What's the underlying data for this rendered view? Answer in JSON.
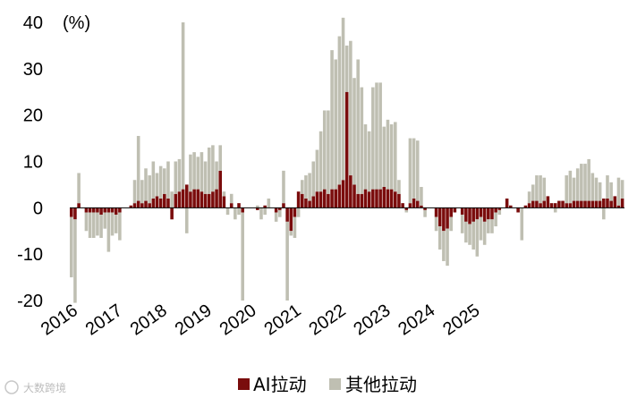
{
  "chart_data": {
    "type": "bar",
    "stacked": true,
    "unit_label": "(%)",
    "ylim": [
      -20,
      40
    ],
    "yticks": [
      -20,
      -10,
      0,
      10,
      20,
      30,
      40
    ],
    "x_tick_labels": [
      "2016",
      "2017",
      "2018",
      "2019",
      "2020",
      "2021",
      "2022",
      "2023",
      "2024",
      "2025"
    ],
    "x_start": "2016-01",
    "colors": {
      "AI拉动": "#7a0c0c",
      "其他拉动": "#bfbfb2"
    },
    "legend": {
      "position": "bottom-center",
      "entries": [
        "AI拉动",
        "其他拉动"
      ]
    },
    "series": [
      {
        "name": "AI拉动",
        "values": [
          -2,
          -2.5,
          1,
          0,
          -1,
          -1,
          -1,
          -1,
          -1.5,
          -1,
          -1,
          -1,
          -1.5,
          -1,
          0,
          0,
          0.5,
          1,
          1.5,
          1,
          1.5,
          1,
          2,
          2.5,
          2,
          3,
          2,
          -2.5,
          3,
          3.5,
          4,
          5,
          3.5,
          4,
          4,
          3.5,
          3,
          3,
          3.5,
          4,
          8,
          2.5,
          0,
          1,
          0,
          1,
          -1,
          0,
          0,
          0,
          -0.5,
          0,
          0.5,
          0,
          0,
          -1,
          -0.5,
          1,
          -3,
          -5,
          -2,
          3.5,
          3,
          2,
          1.5,
          2.5,
          3.5,
          3.5,
          4,
          3,
          4,
          4,
          5,
          6,
          25,
          7,
          5,
          3,
          3,
          4,
          3.5,
          4,
          4,
          4,
          4.5,
          4,
          4,
          3.5,
          3,
          1,
          -0.5,
          1,
          2,
          1.5,
          0.5,
          -0.5,
          0,
          0,
          -2,
          -4,
          -5,
          -4.5,
          -2,
          -1,
          0,
          -1.5,
          -3,
          -3.5,
          -3,
          -2.5,
          -2,
          -3,
          -2.5,
          -2.5,
          -1,
          -0.5,
          0,
          2,
          0.5,
          0,
          -1,
          0,
          0.5,
          1,
          1.5,
          1.5,
          1,
          1.5,
          2.5,
          1,
          1,
          1.5,
          1.5,
          1,
          1,
          1.5,
          1.5,
          1.5,
          1.5,
          1.5,
          1.5,
          1.5,
          1.5,
          2,
          2,
          1.5,
          2.5,
          0.5,
          2
        ]
      },
      {
        "name": "其他拉动",
        "values": [
          -13,
          -18,
          6.5,
          0,
          -4,
          -5.5,
          -5.5,
          -5,
          -5,
          -3.5,
          -8.5,
          -5,
          -4,
          -6,
          0,
          0,
          0,
          5,
          14,
          5,
          7,
          6,
          8,
          5,
          7,
          5.5,
          8,
          3.5,
          7,
          7,
          36,
          -5.5,
          8,
          8,
          7,
          8.5,
          7,
          10,
          10,
          6,
          5.5,
          1,
          -1.5,
          2,
          -2.5,
          -1.5,
          -19,
          0,
          0,
          0,
          0.5,
          -2.5,
          -1.5,
          2,
          0,
          -2,
          -1.5,
          7,
          -17,
          -1,
          -4.5,
          -2,
          3,
          5,
          6,
          7.5,
          9,
          13,
          17,
          18,
          30,
          28,
          32,
          35,
          10,
          29,
          23,
          29,
          23,
          14,
          13,
          22,
          23,
          23,
          13,
          15,
          14,
          15,
          3,
          0,
          -0.5,
          14,
          13,
          13,
          4,
          -1.5,
          0,
          0,
          -3,
          -5,
          -6.5,
          -8,
          -3,
          0,
          0,
          -4,
          -4.5,
          -4.5,
          -6,
          -8,
          -5,
          -5,
          -3,
          -3,
          -3,
          -1,
          0,
          0,
          0,
          0,
          0,
          -7,
          0,
          2.5,
          3.5,
          5.5,
          6,
          5,
          0,
          0,
          -1,
          0,
          0,
          6,
          7,
          5,
          7,
          8,
          8,
          9,
          6,
          5,
          4,
          -2.5,
          5,
          4,
          0,
          6,
          4
        ]
      }
    ]
  },
  "watermark": "大数跨境"
}
